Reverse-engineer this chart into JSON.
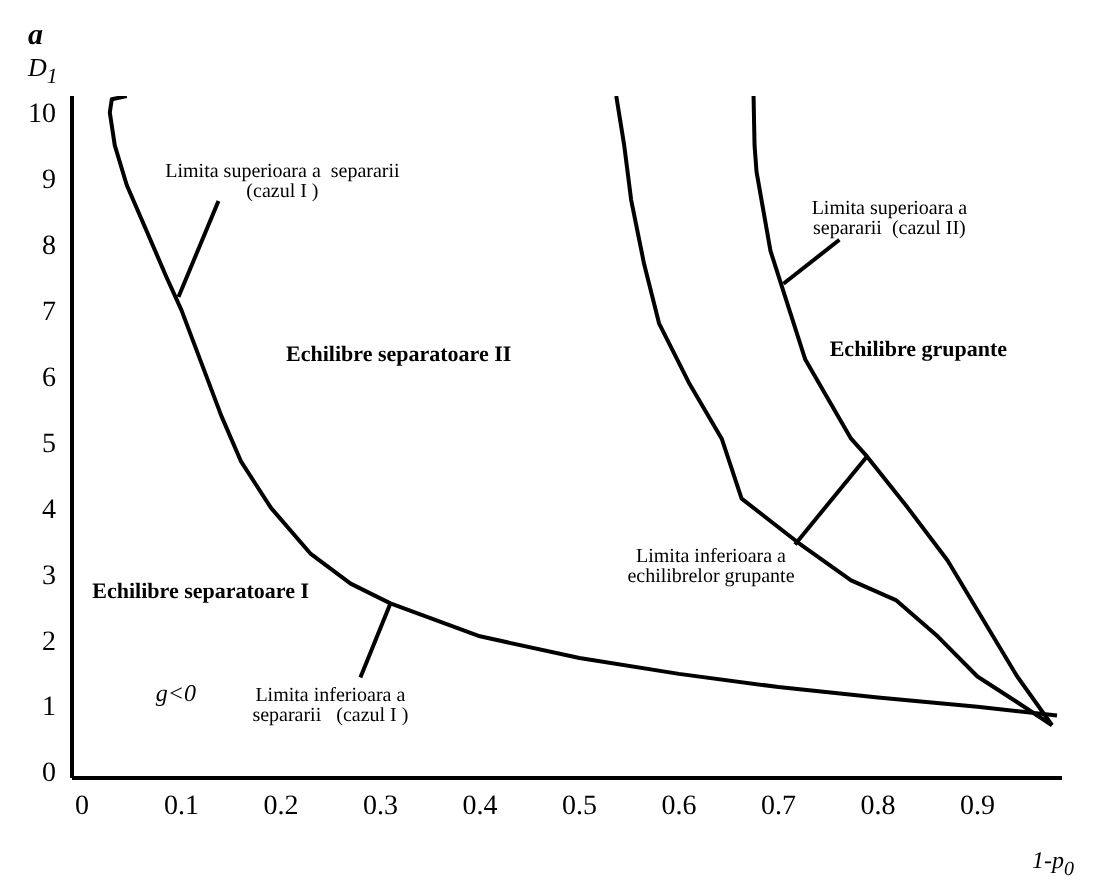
{
  "chart_data": {
    "type": "line",
    "title": "a",
    "ylabel": "D$_{1}$",
    "xlabel": "1-p$_{0}$",
    "xlim": [
      -0.01,
      0.985
    ],
    "xticks": [
      0,
      0.1,
      0.2,
      0.3,
      0.4,
      0.5,
      0.6,
      0.7,
      0.8,
      0.9
    ],
    "ylim": [
      -0.1,
      10.25
    ],
    "yticks": [
      0,
      1,
      2,
      3,
      4,
      5,
      6,
      7,
      8,
      9,
      10
    ],
    "marker": "none",
    "line_style": "solid",
    "series": [
      {
        "color": "#000000",
        "x": [
          0.045,
          0.03,
          0.028,
          0.033,
          0.045,
          0.065,
          0.085,
          0.1,
          0.12,
          0.14,
          0.16,
          0.19,
          0.23,
          0.27,
          0.31,
          0.4,
          0.5,
          0.6,
          0.7,
          0.8,
          0.9,
          0.98
        ],
        "values": [
          10.25,
          10.2,
          10.0,
          9.5,
          8.9,
          8.2,
          7.5,
          7.0,
          6.2,
          5.4,
          4.7,
          4.0,
          3.3,
          2.85,
          2.55,
          2.05,
          1.72,
          1.48,
          1.28,
          1.12,
          0.98,
          0.85
        ]
      },
      {
        "color": "#000000",
        "x": [
          0.537,
          0.545,
          0.552,
          0.565,
          0.58,
          0.61,
          0.643,
          0.663,
          0.72,
          0.773,
          0.818,
          0.86,
          0.9,
          0.94,
          0.975
        ],
        "values": [
          10.25,
          9.5,
          8.67,
          7.7,
          6.8,
          5.9,
          5.05,
          4.14,
          3.47,
          2.9,
          2.6,
          2.05,
          1.44,
          1.05,
          0.7
        ]
      },
      {
        "color": "#000000",
        "x": [
          0.675,
          0.676,
          0.678,
          0.692,
          0.727,
          0.773,
          0.789,
          0.83,
          0.87,
          0.94,
          0.975
        ],
        "values": [
          10.25,
          9.5,
          9.1,
          7.9,
          6.25,
          5.05,
          4.78,
          4.0,
          3.2,
          1.44,
          0.7
        ]
      }
    ],
    "annotations": [
      {
        "text": "Limita superioara a  separarii\n(cazul I )",
        "x": 0.097,
        "y": 7.2
      },
      {
        "text": "Limita superioara a\nsepararii  (cazul II)",
        "x": 0.705,
        "y": 7.4
      },
      "Echilibre separatoare II",
      "Echilibre grupante",
      "Echilibre separatoare I",
      "g<0",
      {
        "text": "Limita inferioara a\nsepararii   (cazul I )",
        "x": 0.31,
        "y": 2.55
      },
      {
        "text": "Limita inferioara a\nechilibrelor grupante",
        "x": 0.789,
        "y": 4.78
      }
    ]
  }
}
